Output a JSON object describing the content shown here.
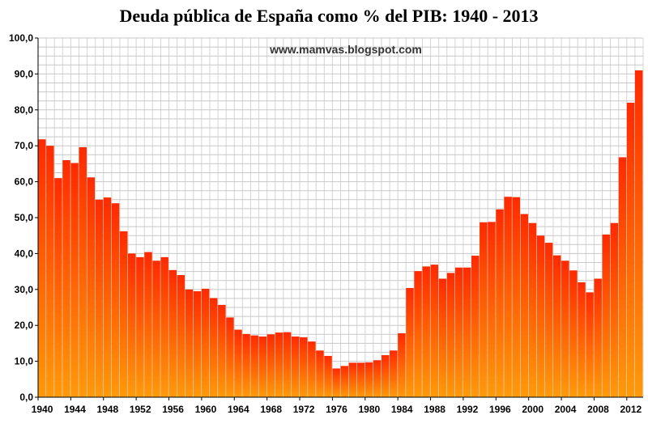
{
  "chart_data": {
    "type": "bar",
    "title": "Deuda pública de España como % del PIB: 1940 - 2013",
    "watermark": "www.mamvas.blogspot.com",
    "xlabel": "",
    "ylabel": "",
    "ylim": [
      0,
      100
    ],
    "yticks": [
      "0,0",
      "10,0",
      "20,0",
      "30,0",
      "40,0",
      "50,0",
      "60,0",
      "70,0",
      "80,0",
      "90,0",
      "100,0"
    ],
    "ytick_values": [
      0,
      10,
      20,
      30,
      40,
      50,
      60,
      70,
      80,
      90,
      100
    ],
    "xtick_labels": [
      "1940",
      "1944",
      "1948",
      "1952",
      "1956",
      "1960",
      "1964",
      "1968",
      "1972",
      "1976",
      "1980",
      "1984",
      "1988",
      "1992",
      "1996",
      "2000",
      "2004",
      "2008",
      "2012"
    ],
    "grid": true,
    "legend": "none",
    "bar_gradient": [
      "#ff2a00",
      "#ff9a0a"
    ],
    "categories": [
      "1940",
      "1941",
      "1942",
      "1943",
      "1944",
      "1945",
      "1946",
      "1947",
      "1948",
      "1949",
      "1950",
      "1951",
      "1952",
      "1953",
      "1954",
      "1955",
      "1956",
      "1957",
      "1958",
      "1959",
      "1960",
      "1961",
      "1962",
      "1963",
      "1964",
      "1965",
      "1966",
      "1967",
      "1968",
      "1969",
      "1970",
      "1971",
      "1972",
      "1973",
      "1974",
      "1975",
      "1976",
      "1977",
      "1978",
      "1979",
      "1980",
      "1981",
      "1982",
      "1983",
      "1984",
      "1985",
      "1986",
      "1987",
      "1988",
      "1989",
      "1990",
      "1991",
      "1992",
      "1993",
      "1994",
      "1995",
      "1996",
      "1997",
      "1998",
      "1999",
      "2000",
      "2001",
      "2002",
      "2003",
      "2004",
      "2005",
      "2006",
      "2007",
      "2008",
      "2009",
      "2010",
      "2011",
      "2012",
      "2013"
    ],
    "values": [
      71.8,
      70.0,
      61.0,
      66.0,
      65.2,
      69.6,
      61.2,
      55.0,
      55.6,
      54.0,
      46.2,
      40.0,
      39.0,
      40.4,
      38.0,
      39.0,
      35.4,
      34.0,
      30.0,
      29.5,
      30.2,
      27.6,
      25.7,
      22.2,
      18.8,
      17.6,
      17.2,
      16.9,
      17.5,
      18.0,
      18.1,
      16.9,
      16.7,
      15.5,
      13.0,
      11.5,
      8.0,
      8.7,
      9.6,
      9.6,
      9.7,
      10.3,
      11.7,
      13.0,
      17.8,
      30.4,
      35.1,
      36.4,
      36.9,
      33.0,
      34.6,
      36.1,
      36.1,
      39.4,
      48.7,
      48.8,
      52.3,
      55.8,
      55.7,
      51.0,
      48.5,
      45.0,
      43.0,
      39.5,
      38.0,
      35.3,
      32.0,
      29.2,
      33.0,
      45.3,
      48.5,
      66.8,
      82.0,
      91.0
    ]
  }
}
